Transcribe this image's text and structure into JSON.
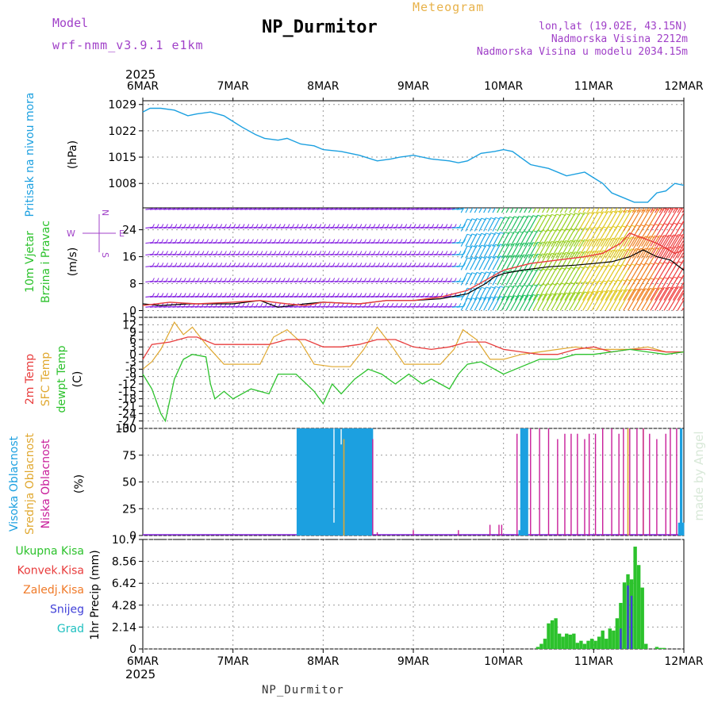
{
  "header": {
    "model_label": "Model",
    "model_version": "wrf-nmm_v3.9.1 e1km",
    "meteogram_label": "Meteogram",
    "station": "NP_Durmitor",
    "lonlat": "lon,lat (19.02E, 43.15N)",
    "altitude": "Nadmorska Visina 2212m",
    "model_altitude": "Nadmorska Visina u modelu 2034.15m"
  },
  "footer": {
    "station": "NP_Durmitor"
  },
  "x_axis": {
    "year": "2025",
    "ticks": [
      "6MAR",
      "7MAR",
      "8MAR",
      "9MAR",
      "10MAR",
      "11MAR",
      "12MAR"
    ]
  },
  "signature": "made by Angel",
  "colors": {
    "pressure": "#1ca0e0",
    "temp2m": "#e83c3c",
    "sfc_temp": "#e0a830",
    "dewpt": "#2cc22c",
    "high_cloud": "#1ca0e0",
    "mid_cloud": "#e0a830",
    "low_cloud": "#c81e9a",
    "total_precip": "#2cc22c",
    "conv_precip": "#e83c3c",
    "strat_precip": "#f07a28",
    "snow": "#4040d8",
    "hail": "#20c0c0",
    "wind_label": "#2cc22c",
    "compass": "#a040c8"
  },
  "chart_data": [
    {
      "type": "line",
      "ylabel": [
        "Pritisak na nivou mora",
        "(hPa)"
      ],
      "yticks": [
        1008,
        1015,
        1022,
        1029
      ],
      "ylim": [
        1001.5,
        1030
      ],
      "x_unit": "days since 6MAR",
      "x": [
        0,
        0.08,
        0.2,
        0.35,
        0.5,
        0.6,
        0.75,
        0.9,
        1.0,
        1.1,
        1.25,
        1.35,
        1.5,
        1.6,
        1.75,
        1.9,
        2.0,
        2.2,
        2.4,
        2.6,
        2.75,
        2.85,
        3.0,
        3.2,
        3.4,
        3.5,
        3.6,
        3.75,
        3.9,
        4.0,
        4.1,
        4.3,
        4.4,
        4.5,
        4.7,
        4.9,
        5.0,
        5.1,
        5.2,
        5.3,
        5.45,
        5.6,
        5.7,
        5.8,
        5.9,
        6.0
      ],
      "values": [
        1027,
        1028,
        1028,
        1027.5,
        1026,
        1026.5,
        1027,
        1026,
        1024.5,
        1023,
        1021,
        1020,
        1019.5,
        1020,
        1018.5,
        1018,
        1017,
        1016.5,
        1015.5,
        1014,
        1014.5,
        1015,
        1015.5,
        1014.5,
        1014,
        1013.5,
        1014,
        1016,
        1016.5,
        1017,
        1016.5,
        1013,
        1012.5,
        1012,
        1010,
        1011,
        1009.5,
        1008,
        1005.5,
        1004.5,
        1003,
        1003,
        1005.5,
        1006,
        1008,
        1007.5
      ]
    },
    {
      "type": "line",
      "ylabel": [
        "10m Vjetar",
        "Brzina i Pravac",
        "(m/s)"
      ],
      "yticks": [
        0,
        8,
        16,
        24
      ],
      "ylim": [
        -2,
        30.5
      ],
      "compass": {
        "n": "N",
        "s": "S",
        "w": "W",
        "e": "E"
      },
      "x_unit": "days since 6MAR",
      "series": [
        {
          "x": [
            0,
            0.2,
            0.5,
            1.0,
            1.3,
            1.5,
            1.8,
            2.0,
            2.4,
            2.7,
            3.0,
            3.3,
            3.6,
            3.8,
            3.9,
            4.0,
            4.2,
            4.5,
            4.8,
            5.0,
            5.2,
            5.4,
            5.55,
            5.7,
            5.85,
            6.0
          ],
          "values": [
            2,
            1.5,
            2,
            2,
            3,
            1,
            2,
            2.5,
            2,
            3,
            3,
            3.5,
            5,
            8,
            10,
            11,
            12,
            13,
            13.5,
            14,
            14.5,
            16,
            18,
            16,
            15,
            12
          ]
        },
        {
          "x": [
            0,
            0.3,
            0.6,
            1.0,
            1.3,
            1.6,
            1.8,
            2.0,
            2.4,
            2.7,
            3.0,
            3.3,
            3.6,
            3.8,
            4.0,
            4.3,
            4.6,
            4.9,
            5.1,
            5.3,
            5.4,
            5.5,
            5.7,
            5.9,
            6.0
          ],
          "values": [
            1.5,
            2.5,
            2,
            2.5,
            3,
            2,
            1.5,
            2.5,
            2,
            3,
            3,
            4,
            6,
            9,
            12,
            14,
            15,
            16,
            17,
            20,
            23,
            22,
            20,
            17,
            18
          ]
        }
      ],
      "barb_rows": [
        1,
        4,
        8.5,
        13,
        16.5,
        20,
        24.5,
        30
      ]
    },
    {
      "type": "line",
      "ylabel": [
        "2m Temp",
        "SFC Temp",
        "dewpt Temp",
        "(C)"
      ],
      "yticks": [
        15,
        12,
        9,
        6,
        3,
        0,
        -3,
        -6,
        -9,
        -12,
        -15,
        -18,
        -21,
        -24,
        -27,
        -30
      ],
      "ylim": [
        -30,
        15
      ],
      "x_unit": "days since 6MAR",
      "series": [
        {
          "name": "2m Temp",
          "x": [
            0,
            0.1,
            0.3,
            0.5,
            0.6,
            0.8,
            1.0,
            1.2,
            1.4,
            1.6,
            1.8,
            2.0,
            2.2,
            2.4,
            2.6,
            2.8,
            3.0,
            3.2,
            3.4,
            3.6,
            3.8,
            4.0,
            4.2,
            4.4,
            4.6,
            4.8,
            5.0,
            5.2,
            5.4,
            5.6,
            5.8,
            6.0
          ],
          "values": [
            -2,
            4,
            5,
            7,
            7,
            4,
            4,
            4,
            4,
            6,
            6,
            3,
            3,
            4,
            6,
            6,
            3,
            2,
            3,
            5,
            5,
            2,
            1,
            0,
            0,
            2,
            3,
            1,
            2,
            2,
            1,
            1
          ]
        },
        {
          "name": "SFC Temp",
          "x": [
            0,
            0.1,
            0.2,
            0.35,
            0.45,
            0.55,
            0.7,
            0.9,
            1.1,
            1.3,
            1.45,
            1.6,
            1.75,
            1.9,
            2.1,
            2.3,
            2.45,
            2.6,
            2.75,
            2.9,
            3.1,
            3.3,
            3.45,
            3.55,
            3.7,
            3.85,
            4.0,
            4.2,
            4.4,
            4.6,
            4.8,
            5.0,
            5.2,
            5.4,
            5.6,
            5.8,
            6.0
          ],
          "values": [
            -6,
            -3,
            2,
            13,
            8,
            11,
            4,
            -4,
            -4,
            -4,
            7,
            10,
            5,
            -4,
            -5,
            -5,
            2,
            11,
            4,
            -4,
            -4,
            -4,
            2,
            10,
            6,
            -2,
            -2,
            0,
            1,
            2,
            3,
            2,
            2,
            2,
            3,
            1,
            1
          ]
        },
        {
          "name": "dewpt Temp",
          "x": [
            0,
            0.1,
            0.2,
            0.25,
            0.35,
            0.45,
            0.55,
            0.7,
            0.75,
            0.8,
            0.9,
            1.0,
            1.2,
            1.4,
            1.5,
            1.7,
            1.9,
            2.0,
            2.1,
            2.2,
            2.35,
            2.5,
            2.65,
            2.8,
            2.95,
            3.1,
            3.2,
            3.3,
            3.4,
            3.5,
            3.6,
            3.75,
            3.9,
            4.0,
            4.2,
            4.4,
            4.6,
            4.8,
            5.0,
            5.2,
            5.4,
            5.6,
            5.8,
            6.0
          ],
          "values": [
            -8,
            -14,
            -24,
            -27,
            -10,
            -2,
            0,
            -1,
            -12,
            -18,
            -15,
            -18,
            -14,
            -16,
            -8,
            -8,
            -15,
            -20,
            -12,
            -16,
            -10,
            -6,
            -8,
            -12,
            -8,
            -12,
            -10,
            -12,
            -14,
            -8,
            -4,
            -3,
            -6,
            -8,
            -5,
            -2,
            -2,
            0,
            0,
            1,
            2,
            1,
            0,
            1
          ]
        }
      ]
    },
    {
      "type": "bar",
      "ylabel": [
        "Visoka Oblacnost",
        "Srednja Oblacnost",
        "Niska Oblacnost",
        "(%)"
      ],
      "yticks": [
        0,
        25,
        50,
        75,
        100
      ],
      "ylim": [
        0,
        100
      ],
      "x_unit": "days since 6MAR",
      "high_cloud": {
        "x": [
          1.72,
          1.74,
          1.76,
          1.78,
          1.8,
          1.82,
          1.84,
          1.86,
          1.88,
          1.9,
          1.92,
          1.94,
          1.96,
          1.98,
          2.0,
          2.02,
          2.04,
          2.06,
          2.08,
          2.1,
          2.12,
          2.14,
          2.16,
          2.18,
          2.2,
          2.22,
          2.24,
          2.26,
          2.28,
          2.3,
          2.32,
          2.34,
          2.36,
          2.38,
          2.4,
          2.42,
          2.44,
          2.46,
          2.48,
          2.5,
          2.52,
          2.54,
          4.18,
          4.2,
          4.22,
          4.24,
          4.26,
          5.95,
          5.97,
          5.99
        ],
        "values": [
          100,
          100,
          100,
          100,
          100,
          100,
          100,
          100,
          100,
          100,
          100,
          100,
          100,
          100,
          100,
          100,
          100,
          100,
          100,
          100,
          12,
          100,
          100,
          100,
          85,
          100,
          100,
          100,
          100,
          100,
          100,
          100,
          100,
          100,
          100,
          100,
          100,
          100,
          100,
          100,
          100,
          100,
          5,
          100,
          100,
          100,
          100,
          12,
          100,
          12
        ]
      },
      "mid_cloud": {
        "x": [
          2.23,
          5.38,
          5.55
        ],
        "values": [
          90,
          100,
          100
        ]
      },
      "low_cloud": {
        "x": [
          2.55,
          2.6,
          3.0,
          3.5,
          3.85,
          3.95,
          3.98,
          4.15,
          4.3,
          4.4,
          4.5,
          4.6,
          4.68,
          4.75,
          4.82,
          4.9,
          4.95,
          5.02,
          5.1,
          5.2,
          5.28,
          5.33,
          5.4,
          5.48,
          5.55,
          5.62,
          5.7,
          5.8,
          5.85,
          5.92
        ],
        "values": [
          90,
          3,
          5,
          5,
          10,
          10,
          10,
          95,
          100,
          100,
          100,
          90,
          95,
          95,
          95,
          90,
          95,
          95,
          100,
          100,
          95,
          100,
          100,
          100,
          100,
          95,
          90,
          95,
          100,
          100
        ]
      }
    },
    {
      "type": "bar",
      "ylabel": [
        "1hr Precip (mm)"
      ],
      "legend": [
        "Ukupna Kisa",
        "Konvek.Kisa",
        "Zaledj.Kisa",
        "Snijeg",
        "Grad"
      ],
      "yticks": [
        0,
        2.14,
        4.28,
        6.42,
        8.56,
        10.7
      ],
      "ylim": [
        0,
        10.7
      ],
      "x_unit": "days since 6MAR",
      "total": {
        "x": [
          4.38,
          4.42,
          4.46,
          4.5,
          4.54,
          4.58,
          4.62,
          4.66,
          4.7,
          4.74,
          4.78,
          4.82,
          4.86,
          4.9,
          4.94,
          4.98,
          5.02,
          5.06,
          5.1,
          5.14,
          5.18,
          5.22,
          5.26,
          5.3,
          5.34,
          5.38,
          5.42,
          5.46,
          5.5,
          5.54,
          5.58,
          5.62,
          5.66,
          5.7,
          5.74,
          5.78
        ],
        "values": [
          0.2,
          0.5,
          1,
          2.5,
          2.8,
          3,
          1.5,
          1.2,
          1.5,
          1.4,
          1.5,
          0.6,
          0.8,
          0.5,
          0.8,
          1,
          0.8,
          1.2,
          1.8,
          1,
          2,
          1.8,
          3,
          4.5,
          6.5,
          7.3,
          6.8,
          10,
          8.2,
          6,
          0.5,
          0,
          0,
          0.2,
          0.1,
          0.1
        ]
      },
      "snow": {
        "x": [
          5.3,
          5.38,
          5.42
        ],
        "values": [
          2.0,
          6.2,
          5.2
        ]
      }
    }
  ]
}
